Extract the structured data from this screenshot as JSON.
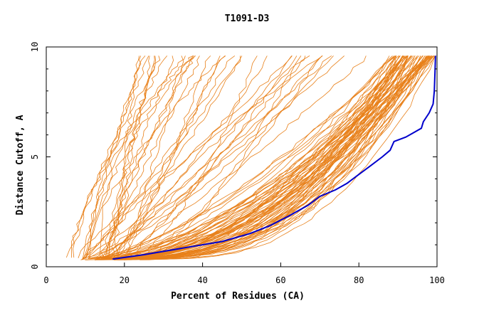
{
  "chart_data": {
    "type": "line",
    "title": "T1091-D3",
    "xlabel": "Percent of Residues (CA)",
    "ylabel": "Distance Cutoff, A",
    "xlim": [
      0,
      100
    ],
    "ylim": [
      0,
      10
    ],
    "x_ticks": [
      0,
      20,
      40,
      60,
      80,
      100
    ],
    "y_ticks": [
      0,
      5,
      10
    ],
    "grid": false,
    "legend": "none",
    "colors": {
      "highlight": "#0000cc",
      "others": "#e8801a",
      "frame": "#000000"
    },
    "highlight_series": {
      "x": [
        17,
        25,
        35,
        45,
        52,
        57,
        62,
        67,
        70,
        74,
        77,
        80,
        83,
        86,
        88,
        89,
        92,
        94,
        96,
        96.5,
        98,
        99,
        99.3,
        99.5,
        99.6
      ],
      "y": [
        0.35,
        0.55,
        0.85,
        1.15,
        1.5,
        1.85,
        2.3,
        2.8,
        3.2,
        3.5,
        3.8,
        4.2,
        4.6,
        5.0,
        5.3,
        5.7,
        5.9,
        6.1,
        6.3,
        6.6,
        7.0,
        7.4,
        8.0,
        9.0,
        9.6
      ]
    }
  }
}
